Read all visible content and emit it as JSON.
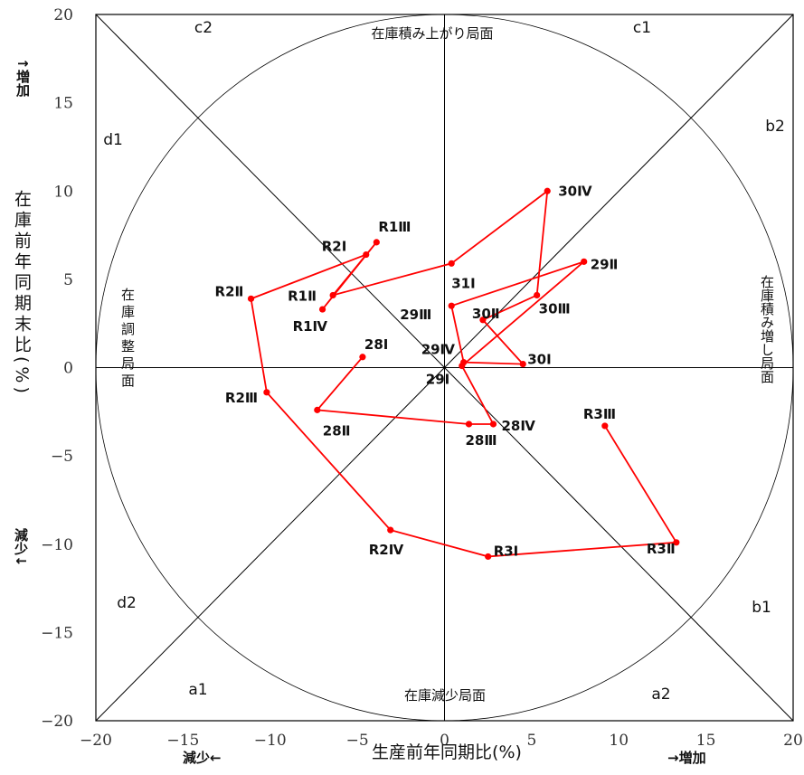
{
  "chart_data": {
    "type": "scatter",
    "xlabel": "生産前年同期比(%)",
    "ylabel": "在庫前年同期末比(%)",
    "xlim": [
      -20,
      20
    ],
    "ylim": [
      -20,
      20
    ],
    "x_ticks": [
      "−20",
      "−15",
      "−10",
      "−5",
      "0",
      "5",
      "10",
      "15",
      "20"
    ],
    "y_ticks": [
      "20",
      "15",
      "10",
      "5",
      "0",
      "−5",
      "−10",
      "−15",
      "−20"
    ],
    "x_dir_left": "減少←",
    "x_dir_right": "→増加",
    "y_dir_up": "↑増加",
    "y_dir_down": "減少↓",
    "phase_labels": {
      "top": "在庫積み上がり局面",
      "bottom": "在庫減少局面",
      "left": "在庫調整局面",
      "right": "在庫積み増し局面"
    },
    "zone_labels": {
      "a1": "a1",
      "a2": "a2",
      "b1": "b1",
      "b2": "b2",
      "c1": "c1",
      "c2": "c2",
      "d1": "d1",
      "d2": "d2"
    },
    "series": [
      {
        "color": "#ff0000",
        "points": [
          {
            "label": "28Ⅰ",
            "x": -4.7,
            "y": 0.6
          },
          {
            "label": "28Ⅱ",
            "x": -7.3,
            "y": -2.4
          },
          {
            "label": "28Ⅲ",
            "x": 1.4,
            "y": -3.2
          },
          {
            "label": "28Ⅳ",
            "x": 2.8,
            "y": -3.2
          },
          {
            "label": "29Ⅰ",
            "x": 1.0,
            "y": 0.1
          },
          {
            "label": "29Ⅱ",
            "x": 8.0,
            "y": 6.0
          },
          {
            "label": "29Ⅲ",
            "x": 0.4,
            "y": 3.5
          },
          {
            "label": "29Ⅳ",
            "x": 1.1,
            "y": 0.3
          },
          {
            "label": "30Ⅰ",
            "x": 4.5,
            "y": 0.2
          },
          {
            "label": "30Ⅱ",
            "x": 2.2,
            "y": 2.7
          },
          {
            "label": "30Ⅲ",
            "x": 5.3,
            "y": 4.1
          },
          {
            "label": "30Ⅳ",
            "x": 5.9,
            "y": 10.0
          },
          {
            "label": "31Ⅰ",
            "x": 0.4,
            "y": 5.9
          },
          {
            "label": "R1Ⅱ",
            "x": -6.4,
            "y": 4.1
          },
          {
            "label": "R1Ⅲ",
            "x": -3.9,
            "y": 7.1
          },
          {
            "label": "R1Ⅳ",
            "x": -7.0,
            "y": 3.3
          },
          {
            "label": "R2Ⅰ",
            "x": -4.5,
            "y": 6.4
          },
          {
            "label": "R2Ⅱ",
            "x": -11.1,
            "y": 3.9
          },
          {
            "label": "R2Ⅲ",
            "x": -10.2,
            "y": -1.4
          },
          {
            "label": "R2Ⅳ",
            "x": -3.1,
            "y": -9.2
          },
          {
            "label": "R3Ⅰ",
            "x": 2.5,
            "y": -10.7
          },
          {
            "label": "R3Ⅱ",
            "x": 13.3,
            "y": -9.9
          },
          {
            "label": "R3Ⅲ",
            "x": 9.2,
            "y": -3.3
          }
        ]
      }
    ],
    "grid": false,
    "legend": "none"
  }
}
